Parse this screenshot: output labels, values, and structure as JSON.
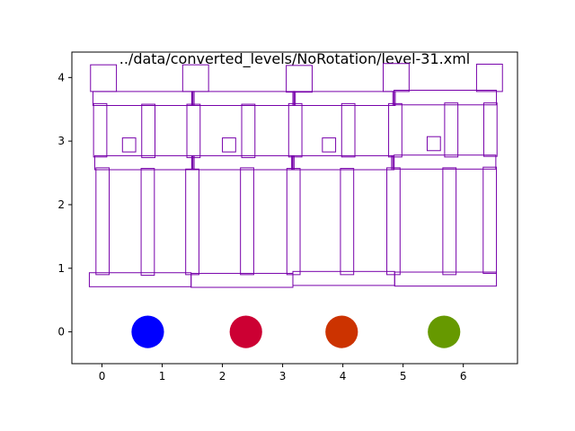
{
  "chart_data": {
    "type": "scatter",
    "title": "../data/converted_levels/NoRotation/level-31.xml",
    "xlabel": "",
    "ylabel": "",
    "xlim": [
      -0.5,
      6.9
    ],
    "ylim": [
      -0.5,
      4.4
    ],
    "xticks": [
      0,
      1,
      2,
      3,
      4,
      5,
      6
    ],
    "yticks": [
      0,
      1,
      2,
      3,
      4
    ],
    "grid": false,
    "outline_color": "#7700aa",
    "blocks": [
      {
        "x": -0.19,
        "y": 3.78,
        "w": 0.43,
        "h": 0.42
      },
      {
        "x": 1.34,
        "y": 3.78,
        "w": 0.43,
        "h": 0.42
      },
      {
        "x": 3.06,
        "y": 3.77,
        "w": 0.43,
        "h": 0.42
      },
      {
        "x": 4.67,
        "y": 3.78,
        "w": 0.43,
        "h": 0.44
      },
      {
        "x": 6.22,
        "y": 3.78,
        "w": 0.43,
        "h": 0.43
      },
      {
        "x": -0.15,
        "y": 3.56,
        "w": 1.65,
        "h": 0.22
      },
      {
        "x": 1.51,
        "y": 3.56,
        "w": 1.68,
        "h": 0.22
      },
      {
        "x": 3.19,
        "y": 3.56,
        "w": 1.66,
        "h": 0.22
      },
      {
        "x": 4.85,
        "y": 3.57,
        "w": 1.7,
        "h": 0.23
      },
      {
        "x": 1.49,
        "y": 3.56,
        "w": 0.04,
        "h": 0.22
      },
      {
        "x": 3.17,
        "y": 3.56,
        "w": 0.04,
        "h": 0.22
      },
      {
        "x": 4.83,
        "y": 3.56,
        "w": 0.04,
        "h": 0.22
      },
      {
        "x": -0.14,
        "y": 2.75,
        "w": 0.22,
        "h": 0.84
      },
      {
        "x": 0.66,
        "y": 2.74,
        "w": 0.22,
        "h": 0.84
      },
      {
        "x": 1.41,
        "y": 2.74,
        "w": 0.22,
        "h": 0.84
      },
      {
        "x": 2.32,
        "y": 2.74,
        "w": 0.22,
        "h": 0.84
      },
      {
        "x": 3.1,
        "y": 2.75,
        "w": 0.22,
        "h": 0.84
      },
      {
        "x": 3.98,
        "y": 2.75,
        "w": 0.22,
        "h": 0.84
      },
      {
        "x": 4.76,
        "y": 2.75,
        "w": 0.22,
        "h": 0.84
      },
      {
        "x": 5.69,
        "y": 2.75,
        "w": 0.22,
        "h": 0.85
      },
      {
        "x": 6.34,
        "y": 2.76,
        "w": 0.22,
        "h": 0.84
      },
      {
        "x": 0.34,
        "y": 2.83,
        "w": 0.22,
        "h": 0.22
      },
      {
        "x": 2.0,
        "y": 2.83,
        "w": 0.22,
        "h": 0.22
      },
      {
        "x": 3.66,
        "y": 2.83,
        "w": 0.22,
        "h": 0.22
      },
      {
        "x": 5.4,
        "y": 2.85,
        "w": 0.22,
        "h": 0.22
      },
      {
        "x": -0.12,
        "y": 2.55,
        "w": 1.62,
        "h": 0.22
      },
      {
        "x": 1.51,
        "y": 2.55,
        "w": 1.65,
        "h": 0.22
      },
      {
        "x": 3.17,
        "y": 2.55,
        "w": 1.66,
        "h": 0.22
      },
      {
        "x": 4.85,
        "y": 2.56,
        "w": 1.69,
        "h": 0.22
      },
      {
        "x": 1.49,
        "y": 2.55,
        "w": 0.04,
        "h": 0.22
      },
      {
        "x": 3.15,
        "y": 2.55,
        "w": 0.04,
        "h": 0.22
      },
      {
        "x": 4.81,
        "y": 2.55,
        "w": 0.04,
        "h": 0.22
      },
      {
        "x": -0.1,
        "y": 0.9,
        "w": 0.22,
        "h": 1.68
      },
      {
        "x": 0.65,
        "y": 0.89,
        "w": 0.22,
        "h": 1.68
      },
      {
        "x": 1.39,
        "y": 0.9,
        "w": 0.22,
        "h": 1.66
      },
      {
        "x": 2.3,
        "y": 0.9,
        "w": 0.22,
        "h": 1.68
      },
      {
        "x": 3.07,
        "y": 0.9,
        "w": 0.22,
        "h": 1.67
      },
      {
        "x": 3.96,
        "y": 0.9,
        "w": 0.22,
        "h": 1.67
      },
      {
        "x": 4.73,
        "y": 0.9,
        "w": 0.22,
        "h": 1.68
      },
      {
        "x": 5.66,
        "y": 0.9,
        "w": 0.22,
        "h": 1.68
      },
      {
        "x": 6.33,
        "y": 0.92,
        "w": 0.22,
        "h": 1.67
      },
      {
        "x": -0.21,
        "y": 0.71,
        "w": 1.69,
        "h": 0.22
      },
      {
        "x": 1.48,
        "y": 0.7,
        "w": 1.69,
        "h": 0.22
      },
      {
        "x": 3.17,
        "y": 0.73,
        "w": 1.69,
        "h": 0.22
      },
      {
        "x": 4.86,
        "y": 0.72,
        "w": 1.69,
        "h": 0.22
      }
    ],
    "circles": [
      {
        "x": 0.76,
        "y": 0.0,
        "r": 0.27,
        "color": "#0000ff"
      },
      {
        "x": 2.39,
        "y": 0.0,
        "r": 0.27,
        "color": "#cc0033"
      },
      {
        "x": 3.98,
        "y": 0.0,
        "r": 0.27,
        "color": "#cc3300"
      },
      {
        "x": 5.68,
        "y": 0.0,
        "r": 0.27,
        "color": "#669900"
      }
    ]
  }
}
